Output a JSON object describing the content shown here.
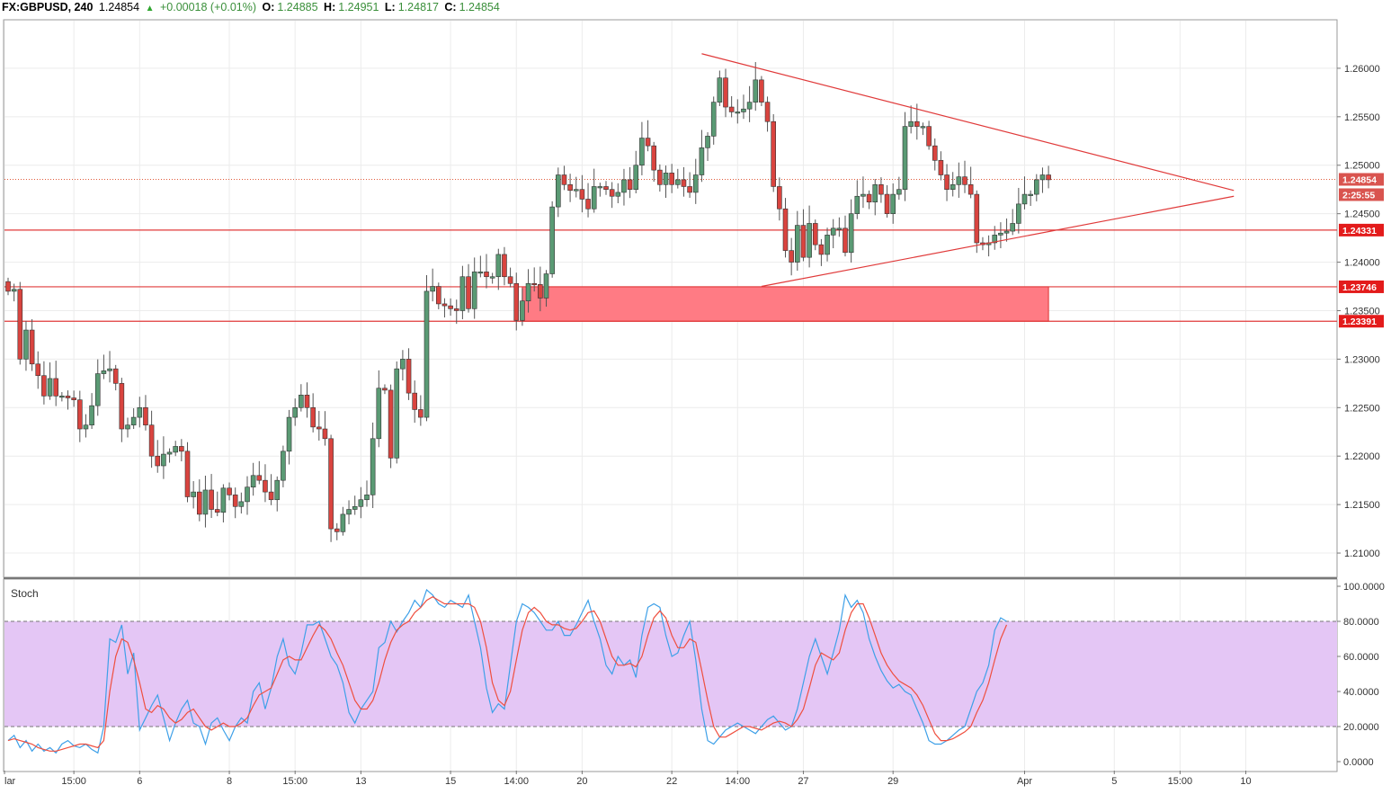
{
  "header": {
    "symbol": "FX:GBPUSD, 240",
    "last": "1.24854",
    "change": "+0.00018 (+0.01%)",
    "o_label": "O:",
    "o": "1.24885",
    "h_label": "H:",
    "h": "1.24951",
    "l_label": "L:",
    "l": "1.24817",
    "c_label": "C:",
    "c": "1.24854",
    "up_color": "#2fa52f"
  },
  "chart_data": {
    "type": "candlestick",
    "symbol": "FX:GBPUSD",
    "interval": "240",
    "price_range": [
      1.2075,
      1.265
    ],
    "price_ticks": [
      "1.26000",
      "1.25500",
      "1.25000",
      "1.24500",
      "1.24000",
      "1.23500",
      "1.23000",
      "1.22500",
      "1.22000",
      "1.21500",
      "1.21000"
    ],
    "time_ticks": [
      {
        "label": "lar",
        "index": 0
      },
      {
        "label": "15:00",
        "index": 11
      },
      {
        "label": "6",
        "index": 22
      },
      {
        "label": "8",
        "index": 37
      },
      {
        "label": "15:00",
        "index": 48
      },
      {
        "label": "13",
        "index": 59
      },
      {
        "label": "15",
        "index": 74
      },
      {
        "label": "14:00",
        "index": 85
      },
      {
        "label": "20",
        "index": 96
      },
      {
        "label": "22",
        "index": 111
      },
      {
        "label": "14:00",
        "index": 122
      },
      {
        "label": "27",
        "index": 133
      },
      {
        "label": "29",
        "index": 148
      },
      {
        "label": "Apr",
        "index": 170
      },
      {
        "label": "5",
        "index": 185
      },
      {
        "label": "15:00",
        "index": 196
      },
      {
        "label": "10",
        "index": 207
      }
    ],
    "closes": [
      1.237,
      1.2372,
      1.23,
      1.233,
      1.2295,
      1.2283,
      1.2262,
      1.228,
      1.2262,
      1.2262,
      1.226,
      1.2258,
      1.2228,
      1.2232,
      1.2252,
      1.2285,
      1.2288,
      1.229,
      1.2275,
      1.2228,
      1.2232,
      1.224,
      1.225,
      1.2232,
      1.22,
      1.219,
      1.2202,
      1.2204,
      1.221,
      1.2205,
      1.2158,
      1.2163,
      1.214,
      1.2165,
      1.2145,
      1.2142,
      1.2167,
      1.216,
      1.2148,
      1.2153,
      1.2168,
      1.218,
      1.2175,
      1.2163,
      1.2155,
      1.2175,
      1.2205,
      1.224,
      1.225,
      1.2263,
      1.225,
      1.223,
      1.2228,
      1.2218,
      1.2125,
      1.2122,
      1.214,
      1.2145,
      1.2148,
      1.2155,
      1.216,
      1.2218,
      1.227,
      1.2268,
      1.2198,
      1.229,
      1.23,
      1.2265,
      1.2248,
      1.224,
      1.237,
      1.2375,
      1.2357,
      1.2355,
      1.2352,
      1.235,
      1.2385,
      1.2352,
      1.239,
      1.239,
      1.2385,
      1.2385,
      1.2408,
      1.2385,
      1.2378,
      1.234,
      1.236,
      1.2378,
      1.2377,
      1.2363,
      1.2388,
      1.2457,
      1.249,
      1.248,
      1.2474,
      1.2475,
      1.2465,
      1.2455,
      1.2478,
      1.2478,
      1.2475,
      1.2468,
      1.2472,
      1.2485,
      1.2475,
      1.25,
      1.2528,
      1.252,
      1.2495,
      1.248,
      1.2492,
      1.248,
      1.2485,
      1.2478,
      1.2472,
      1.249,
      1.2518,
      1.253,
      1.2565,
      1.259,
      1.256,
      1.2555,
      1.2555,
      1.2558,
      1.2565,
      1.2588,
      1.2565,
      1.2545,
      1.2478,
      1.2455,
      1.2412,
      1.24,
      1.2438,
      1.2405,
      1.244,
      1.2418,
      1.2408,
      1.2428,
      1.2435,
      1.2435,
      1.241,
      1.245,
      1.2468,
      1.247,
      1.2462,
      1.248,
      1.247,
      1.245,
      1.247,
      1.2475,
      1.254,
      1.2545,
      1.254,
      1.254,
      1.252,
      1.2505,
      1.249,
      1.2475,
      1.248,
      1.2488,
      1.248,
      1.247,
      1.242,
      1.2418,
      1.242,
      1.2428,
      1.243,
      1.2432,
      1.244,
      1.246,
      1.247,
      1.247,
      1.2485,
      1.249,
      1.2485
    ],
    "boxes": [
      {
        "top": 1.23746,
        "bottom": 1.23391,
        "from_index": 86,
        "to_index": 174,
        "color": "#ff7b84"
      }
    ],
    "horizontal_lines": [
      {
        "price": 1.24331,
        "label": "1.24331"
      },
      {
        "price": 1.23746,
        "label": "1.23746"
      },
      {
        "price": 1.23391,
        "label": "1.23391"
      }
    ],
    "last_price_line": {
      "price": 1.24854,
      "label": "1.24854",
      "countdown": "2:25:55"
    },
    "trendlines": [
      {
        "from_index": 116,
        "from_price": 1.2615,
        "to_index": 205,
        "to_price": 1.2474
      },
      {
        "from_index": 126,
        "from_price": 1.2375,
        "to_index": 205,
        "to_price": 1.2468
      }
    ],
    "up_color": "#5a9a74",
    "down_color": "#d9443f"
  },
  "stoch": {
    "title": "Stoch",
    "range": [
      0,
      100
    ],
    "ticks": [
      "100.0000",
      "80.0000",
      "60.0000",
      "40.0000",
      "20.0000",
      "0.0000"
    ],
    "upper_band": 80,
    "lower_band": 20,
    "k_color": "#3ea0e8",
    "d_color": "#ef4f3f",
    "band_fill": "#e4c6f5",
    "k": [
      12,
      15,
      8,
      12,
      6,
      10,
      6,
      8,
      5,
      10,
      12,
      9,
      8,
      10,
      7,
      5,
      20,
      70,
      68,
      78,
      50,
      62,
      18,
      25,
      32,
      38,
      25,
      12,
      22,
      30,
      35,
      22,
      20,
      10,
      22,
      25,
      18,
      12,
      20,
      25,
      22,
      40,
      45,
      30,
      42,
      60,
      70,
      55,
      50,
      62,
      78,
      78,
      80,
      70,
      60,
      55,
      45,
      28,
      22,
      30,
      35,
      40,
      65,
      68,
      80,
      74,
      80,
      85,
      92,
      88,
      98,
      95,
      90,
      88,
      92,
      90,
      88,
      95,
      80,
      65,
      42,
      28,
      33,
      30,
      55,
      80,
      90,
      88,
      85,
      80,
      75,
      75,
      80,
      72,
      72,
      78,
      85,
      92,
      80,
      70,
      55,
      50,
      60,
      55,
      58,
      48,
      72,
      88,
      90,
      88,
      72,
      60,
      62,
      72,
      80,
      58,
      30,
      12,
      10,
      14,
      18,
      20,
      22,
      20,
      18,
      16,
      20,
      24,
      26,
      22,
      18,
      20,
      30,
      45,
      60,
      70,
      60,
      50,
      62,
      75,
      95,
      88,
      92,
      85,
      70,
      60,
      52,
      46,
      42,
      44,
      40,
      38,
      30,
      22,
      12,
      10,
      10,
      12,
      15,
      18,
      20,
      30,
      40,
      45,
      55,
      75,
      82,
      80
    ],
    "d": [
      12,
      13,
      12,
      11,
      10,
      8,
      7,
      6,
      6,
      7,
      8,
      9,
      10,
      10,
      9,
      8,
      12,
      40,
      60,
      70,
      68,
      58,
      45,
      30,
      28,
      32,
      30,
      25,
      22,
      24,
      28,
      30,
      25,
      20,
      18,
      20,
      22,
      20,
      20,
      22,
      25,
      32,
      38,
      40,
      42,
      50,
      58,
      60,
      58,
      58,
      65,
      72,
      78,
      75,
      70,
      62,
      55,
      45,
      35,
      30,
      30,
      35,
      45,
      58,
      68,
      75,
      78,
      80,
      85,
      88,
      92,
      94,
      92,
      90,
      90,
      90,
      90,
      90,
      88,
      80,
      65,
      45,
      35,
      32,
      40,
      58,
      75,
      85,
      88,
      85,
      80,
      78,
      78,
      76,
      75,
      76,
      80,
      85,
      86,
      80,
      70,
      60,
      55,
      55,
      56,
      54,
      60,
      72,
      82,
      86,
      82,
      72,
      65,
      65,
      70,
      68,
      52,
      35,
      20,
      14,
      14,
      16,
      18,
      20,
      20,
      19,
      18,
      20,
      22,
      23,
      22,
      20,
      24,
      30,
      42,
      55,
      62,
      60,
      58,
      62,
      75,
      85,
      90,
      90,
      82,
      72,
      62,
      55,
      50,
      46,
      44,
      42,
      38,
      32,
      24,
      16,
      12,
      12,
      13,
      15,
      17,
      20,
      28,
      35,
      45,
      58,
      70,
      78
    ]
  }
}
